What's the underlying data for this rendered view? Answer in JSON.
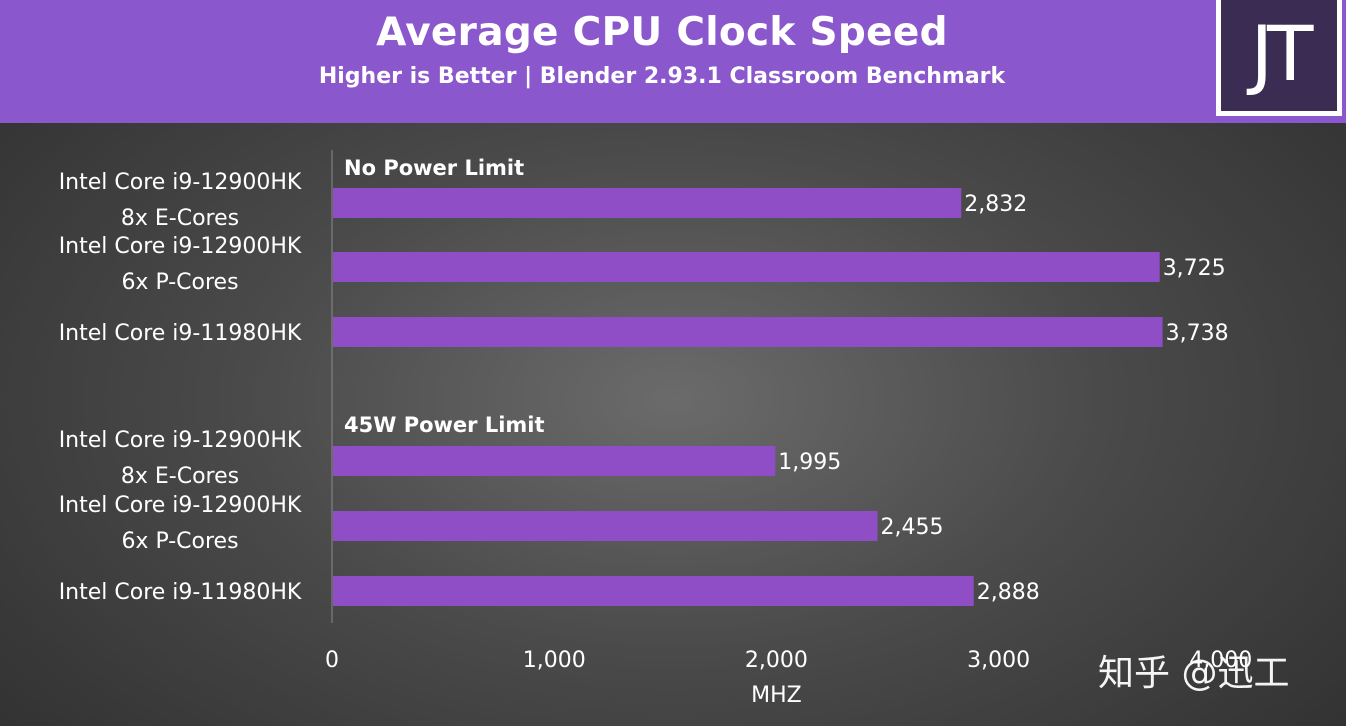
{
  "chart_data": {
    "type": "bar",
    "orientation": "horizontal",
    "title": "Average CPU Clock Speed",
    "subtitle": "Higher is Better | Blender 2.93.1 Classroom Benchmark",
    "xlabel": "MHZ",
    "xlim": [
      0,
      4000
    ],
    "xticks": [
      0,
      1000,
      2000,
      3000,
      4000
    ],
    "xtick_labels": [
      "0",
      "1,000",
      "2,000",
      "3,000",
      "4,000"
    ],
    "bar_color": "#8f4ec6",
    "groups": [
      {
        "label": "No Power Limit",
        "bars": [
          {
            "category": [
              "Intel Core i9-12900HK",
              "8x E-Cores"
            ],
            "value": 2832,
            "value_label": "2,832"
          },
          {
            "category": [
              "Intel Core i9-12900HK",
              "6x P-Cores"
            ],
            "value": 3725,
            "value_label": "3,725"
          },
          {
            "category": [
              "Intel Core i9-11980HK"
            ],
            "value": 3738,
            "value_label": "3,738"
          }
        ]
      },
      {
        "label": "45W Power Limit",
        "bars": [
          {
            "category": [
              "Intel Core i9-12900HK",
              "8x E-Cores"
            ],
            "value": 1995,
            "value_label": "1,995"
          },
          {
            "category": [
              "Intel Core i9-12900HK",
              "6x P-Cores"
            ],
            "value": 2455,
            "value_label": "2,455"
          },
          {
            "category": [
              "Intel Core i9-11980HK"
            ],
            "value": 2888,
            "value_label": "2,888"
          }
        ]
      }
    ]
  },
  "logo": {
    "text": "JT"
  },
  "watermark": {
    "text": "知乎 @迅工"
  },
  "colors": {
    "header": "#8a57cc",
    "bar": "#8f4ec6",
    "text": "#ffffff"
  }
}
